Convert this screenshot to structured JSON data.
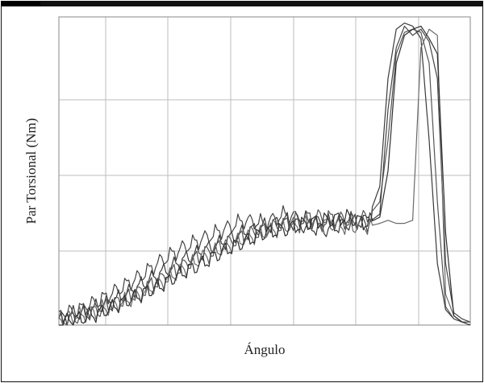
{
  "chart_data": {
    "type": "line",
    "title": "",
    "xlabel": "Ángulo",
    "ylabel": "Par Torsional (Nm)",
    "grid": true,
    "xlim": [
      0,
      100
    ],
    "ylim": [
      0,
      100
    ],
    "series": [
      {
        "color": "#3a3a3a",
        "x": [
          0,
          5,
          10,
          15,
          20,
          25,
          30,
          35,
          40,
          45,
          50,
          55,
          60,
          65,
          70,
          75,
          78,
          80,
          82,
          84,
          86,
          88,
          90,
          92,
          94,
          96,
          98,
          100
        ],
        "y": [
          2,
          4,
          6,
          9,
          13,
          17,
          21,
          24,
          27,
          30,
          32,
          34,
          32,
          31,
          33,
          34,
          45,
          80,
          96,
          98,
          97,
          93,
          60,
          20,
          5,
          2,
          1,
          1
        ]
      },
      {
        "color": "#555555",
        "x": [
          0,
          5,
          10,
          15,
          20,
          25,
          30,
          35,
          40,
          45,
          50,
          55,
          60,
          65,
          70,
          75,
          78,
          80,
          82,
          84,
          86,
          88,
          90,
          92,
          94,
          96,
          98,
          100
        ],
        "y": [
          1,
          3,
          5,
          8,
          11,
          15,
          19,
          23,
          26,
          29,
          31,
          33,
          35,
          35,
          34,
          35,
          40,
          60,
          88,
          95,
          96,
          95,
          85,
          40,
          6,
          2,
          1,
          1
        ]
      },
      {
        "color": "#444444",
        "x": [
          0,
          5,
          10,
          15,
          20,
          25,
          30,
          35,
          40,
          45,
          50,
          55,
          60,
          65,
          70,
          75,
          78,
          80,
          82,
          84,
          86,
          88,
          90,
          92,
          94,
          96,
          98,
          100
        ],
        "y": [
          3,
          5,
          8,
          12,
          16,
          21,
          25,
          28,
          31,
          34,
          33,
          36,
          34,
          33,
          34,
          33,
          36,
          70,
          90,
          97,
          94,
          96,
          92,
          80,
          20,
          4,
          2,
          1
        ]
      },
      {
        "color": "#6a6a6a",
        "x": [
          0,
          5,
          10,
          15,
          20,
          25,
          30,
          35,
          40,
          45,
          50,
          55,
          60,
          65,
          70,
          75,
          78,
          80,
          82,
          84,
          86,
          88,
          90,
          92,
          94,
          96,
          98,
          100
        ],
        "y": [
          2,
          3,
          5,
          7,
          10,
          14,
          18,
          22,
          25,
          28,
          30,
          32,
          33,
          33,
          32,
          32,
          33,
          34,
          33,
          33,
          34,
          90,
          96,
          94,
          10,
          3,
          1,
          1
        ]
      },
      {
        "color": "#2e2e2e",
        "x": [
          0,
          5,
          10,
          15,
          20,
          25,
          30,
          35,
          40,
          45,
          50,
          55,
          60,
          65,
          70,
          75,
          78,
          80,
          82,
          84,
          86,
          88,
          90,
          92,
          94,
          96,
          98,
          100
        ],
        "y": [
          1,
          2,
          4,
          7,
          10,
          13,
          17,
          20,
          24,
          27,
          30,
          31,
          33,
          34,
          35,
          33,
          35,
          50,
          85,
          94,
          96,
          97,
          93,
          88,
          30,
          3,
          1,
          0
        ]
      }
    ]
  }
}
